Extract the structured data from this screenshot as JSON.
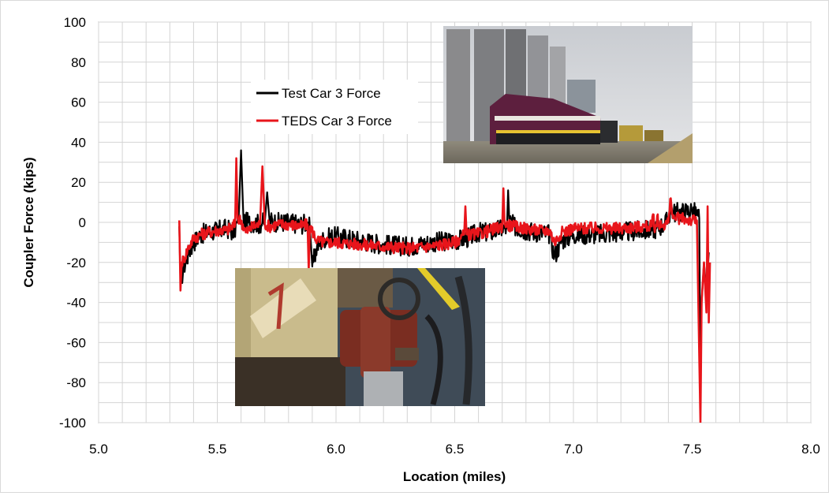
{
  "chart_data": {
    "type": "line",
    "title": "",
    "xlabel": "Location (miles)",
    "ylabel": "Coupler Force (kips)",
    "xlim": [
      5.0,
      8.0
    ],
    "ylim": [
      -100,
      100
    ],
    "x_ticks": [
      "5.0",
      "5.5",
      "6.0",
      "6.5",
      "7.0",
      "7.5",
      "8.0"
    ],
    "y_ticks": [
      "100",
      "80",
      "60",
      "40",
      "20",
      "0",
      "-20",
      "-40",
      "-60",
      "-80",
      "-100"
    ],
    "grid": true,
    "legend_position": "upper-left",
    "insets": [
      {
        "name": "locomotive-photo",
        "description": "photo"
      },
      {
        "name": "coupler-photo",
        "description": "photo"
      }
    ],
    "series": [
      {
        "name": "Test Car 3 Force",
        "color": "#000000",
        "x": [
          5.34,
          5.345,
          5.36,
          5.38,
          5.4,
          5.43,
          5.46,
          5.5,
          5.54,
          5.57,
          5.585,
          5.59,
          5.6,
          5.61,
          5.62,
          5.65,
          5.68,
          5.69,
          5.7,
          5.71,
          5.72,
          5.75,
          5.8,
          5.85,
          5.88,
          5.89,
          5.9,
          5.92,
          5.95,
          6.0,
          6.1,
          6.2,
          6.3,
          6.4,
          6.5,
          6.55,
          6.6,
          6.65,
          6.7,
          6.72,
          6.725,
          6.73,
          6.75,
          6.8,
          6.85,
          6.9,
          6.92,
          6.95,
          7.0,
          7.1,
          7.2,
          7.3,
          7.35,
          7.38,
          7.4,
          7.41,
          7.42,
          7.45,
          7.5,
          7.52,
          7.53,
          7.535,
          7.54,
          7.55,
          7.56,
          7.57
        ],
        "y": [
          -2,
          -30,
          -22,
          -15,
          -10,
          -6,
          -5,
          -4,
          -3,
          -5,
          0,
          2,
          36,
          2,
          0,
          0,
          -1,
          0,
          0,
          15,
          1,
          0,
          0,
          -1,
          0,
          -3,
          -22,
          -12,
          -8,
          -7,
          -9,
          -11,
          -12,
          -10,
          -9,
          -8,
          -5,
          -5,
          -3,
          -3,
          16,
          1,
          -2,
          -4,
          -5,
          -6,
          -17,
          -9,
          -6,
          -6,
          -5,
          -4,
          -3,
          -1,
          1,
          8,
          5,
          5,
          6,
          4,
          2,
          -75,
          -40,
          -20,
          -35,
          -15
        ]
      },
      {
        "name": "TEDS Car 3 Force",
        "color": "#e8151b",
        "x": [
          5.34,
          5.345,
          5.35,
          5.36,
          5.38,
          5.4,
          5.43,
          5.46,
          5.5,
          5.54,
          5.575,
          5.58,
          5.585,
          5.6,
          5.62,
          5.65,
          5.68,
          5.69,
          5.7,
          5.72,
          5.75,
          5.8,
          5.85,
          5.88,
          5.885,
          5.89,
          5.92,
          5.95,
          6.0,
          6.1,
          6.2,
          6.3,
          6.4,
          6.5,
          6.54,
          6.545,
          6.55,
          6.6,
          6.65,
          6.7,
          6.705,
          6.71,
          6.75,
          6.8,
          6.85,
          6.9,
          6.92,
          6.95,
          7.0,
          7.1,
          7.2,
          7.3,
          7.33,
          7.335,
          7.34,
          7.35,
          7.355,
          7.36,
          7.38,
          7.4,
          7.41,
          7.42,
          7.45,
          7.5,
          7.52,
          7.535,
          7.54,
          7.55,
          7.56,
          7.565,
          7.57,
          7.575
        ],
        "y": [
          1,
          -34,
          -20,
          -18,
          -12,
          -8,
          -6,
          -5,
          -4,
          -4,
          -1,
          32,
          2,
          1,
          -5,
          -2,
          -1,
          28,
          -1,
          -2,
          -1,
          -1,
          -2,
          -1,
          -24,
          -2,
          -9,
          -10,
          -10,
          -11,
          -12,
          -13,
          -12,
          -10,
          -6,
          8,
          -6,
          -6,
          -4,
          -2,
          17,
          -1,
          -2,
          -3,
          -4,
          -4,
          -10,
          -5,
          -3,
          -3,
          -3,
          -2,
          -2,
          4,
          -2,
          -2,
          4,
          -2,
          -1,
          0,
          12,
          2,
          2,
          1,
          1,
          -100,
          -40,
          -20,
          -45,
          8,
          -50,
          -20
        ]
      }
    ]
  }
}
